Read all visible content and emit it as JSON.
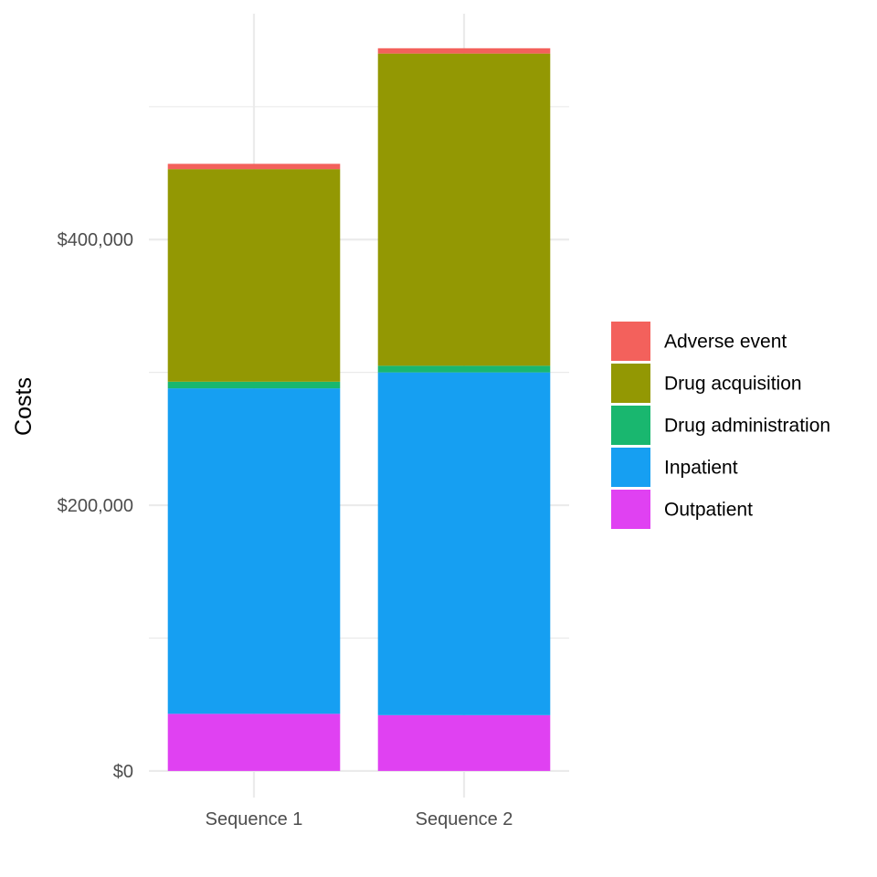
{
  "chart_data": {
    "type": "bar",
    "stacked": true,
    "ylabel": "Costs",
    "categories": [
      "Sequence 1",
      "Sequence 2"
    ],
    "series": [
      {
        "name": "Outpatient",
        "color": "#E041F2",
        "values": [
          43000,
          42000
        ]
      },
      {
        "name": "Inpatient",
        "color": "#169FF2",
        "values": [
          245000,
          258000
        ]
      },
      {
        "name": "Drug administration",
        "color": "#19B76F",
        "values": [
          5000,
          5000
        ]
      },
      {
        "name": "Drug acquisition",
        "color": "#939803",
        "values": [
          160000,
          235000
        ]
      },
      {
        "name": "Adverse event",
        "color": "#F3615C",
        "values": [
          4000,
          4000
        ]
      }
    ],
    "legend_order": [
      "Adverse event",
      "Drug acquisition",
      "Drug administration",
      "Inpatient",
      "Outpatient"
    ],
    "yticks": [
      0,
      200000,
      400000
    ],
    "ytick_labels": [
      "$0",
      "$200,000",
      "$400,000"
    ],
    "ylim": [
      -20000,
      570000
    ],
    "grid": true,
    "legend_position": "right"
  }
}
